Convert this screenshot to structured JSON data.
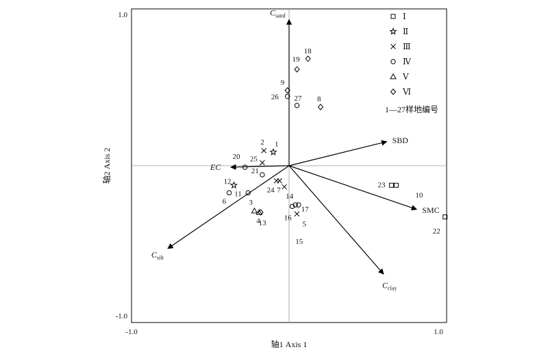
{
  "chart_data": {
    "type": "scatter",
    "title": "",
    "xlabel": "轴1 Axis 1",
    "ylabel": "轴2 Axis 2",
    "xlim": [
      -1.0,
      1.0
    ],
    "ylim": [
      -1.0,
      1.0
    ],
    "x_ticks": [
      "-1.0",
      "1.0"
    ],
    "y_ticks": [
      "1.0",
      "-1.0"
    ],
    "reference_lines": {
      "x": 0,
      "y": 0
    },
    "legend": {
      "placement": "top-right",
      "entries": [
        {
          "label": "Ⅰ",
          "marker": "square"
        },
        {
          "label": "Ⅱ",
          "marker": "star"
        },
        {
          "label": "Ⅲ",
          "marker": "cross"
        },
        {
          "label": "Ⅳ",
          "marker": "circle"
        },
        {
          "label": "Ⅴ",
          "marker": "triangle"
        },
        {
          "label": "Ⅵ",
          "marker": "diamond"
        }
      ],
      "note": "1—27样地编号"
    },
    "vectors": [
      {
        "label": "C",
        "sub": "sand",
        "x": 0.0,
        "y": 0.97
      },
      {
        "label": "SBD",
        "sub": "",
        "x": 0.62,
        "y": 0.16
      },
      {
        "label": "EC",
        "sub": "",
        "x": -0.37,
        "y": -0.01
      },
      {
        "label": "SMC",
        "sub": "",
        "x": 0.81,
        "y": -0.29
      },
      {
        "label": "C",
        "sub": "silt",
        "x": -0.77,
        "y": -0.55
      },
      {
        "label": "C",
        "sub": "clay",
        "x": 0.6,
        "y": -0.72
      }
    ],
    "points": [
      {
        "id": "1",
        "group": "Ⅱ",
        "x": -0.1,
        "y": 0.09
      },
      {
        "id": "2",
        "group": "Ⅲ",
        "x": -0.16,
        "y": 0.1
      },
      {
        "id": "3",
        "group": "Ⅴ",
        "x": -0.22,
        "y": -0.3
      },
      {
        "id": "4",
        "group": "Ⅴ",
        "x": -0.19,
        "y": -0.31
      },
      {
        "id": "5",
        "group": "Ⅲ",
        "x": 0.05,
        "y": -0.32
      },
      {
        "id": "6",
        "group": "Ⅳ",
        "x": -0.38,
        "y": -0.18
      },
      {
        "id": "7",
        "group": "Ⅲ",
        "x": -0.06,
        "y": -0.1
      },
      {
        "id": "8",
        "group": "Ⅵ",
        "x": 0.2,
        "y": 0.39
      },
      {
        "id": "9",
        "group": "Ⅵ",
        "x": -0.01,
        "y": 0.5
      },
      {
        "id": "10",
        "group": "Ⅰ",
        "x": 0.68,
        "y": -0.13
      },
      {
        "id": "11",
        "group": "Ⅳ",
        "x": -0.26,
        "y": -0.18
      },
      {
        "id": "12",
        "group": "Ⅱ",
        "x": -0.35,
        "y": -0.13
      },
      {
        "id": "13",
        "group": "Ⅵ",
        "x": -0.18,
        "y": -0.31
      },
      {
        "id": "14",
        "group": "Ⅲ",
        "x": -0.03,
        "y": -0.14
      },
      {
        "id": "15",
        "group": "Ⅳ",
        "x": 0.04,
        "y": -0.26
      },
      {
        "id": "16",
        "group": "Ⅳ",
        "x": 0.02,
        "y": -0.27
      },
      {
        "id": "17",
        "group": "Ⅳ",
        "x": 0.06,
        "y": -0.26
      },
      {
        "id": "18",
        "group": "Ⅵ",
        "x": 0.12,
        "y": 0.71
      },
      {
        "id": "19",
        "group": "Ⅵ",
        "x": 0.05,
        "y": 0.64
      },
      {
        "id": "20",
        "group": "Ⅳ",
        "x": -0.28,
        "y": -0.01
      },
      {
        "id": "21",
        "group": "Ⅳ",
        "x": -0.17,
        "y": -0.06
      },
      {
        "id": "22",
        "group": "Ⅰ",
        "x": 0.99,
        "y": -0.34
      },
      {
        "id": "23",
        "group": "Ⅰ",
        "x": 0.65,
        "y": -0.13
      },
      {
        "id": "24",
        "group": "Ⅲ",
        "x": -0.08,
        "y": -0.1
      },
      {
        "id": "25",
        "group": "Ⅲ",
        "x": -0.17,
        "y": 0.02
      },
      {
        "id": "26",
        "group": "Ⅳ",
        "x": -0.01,
        "y": 0.46
      },
      {
        "id": "27",
        "group": "Ⅳ",
        "x": 0.05,
        "y": 0.4
      }
    ]
  }
}
